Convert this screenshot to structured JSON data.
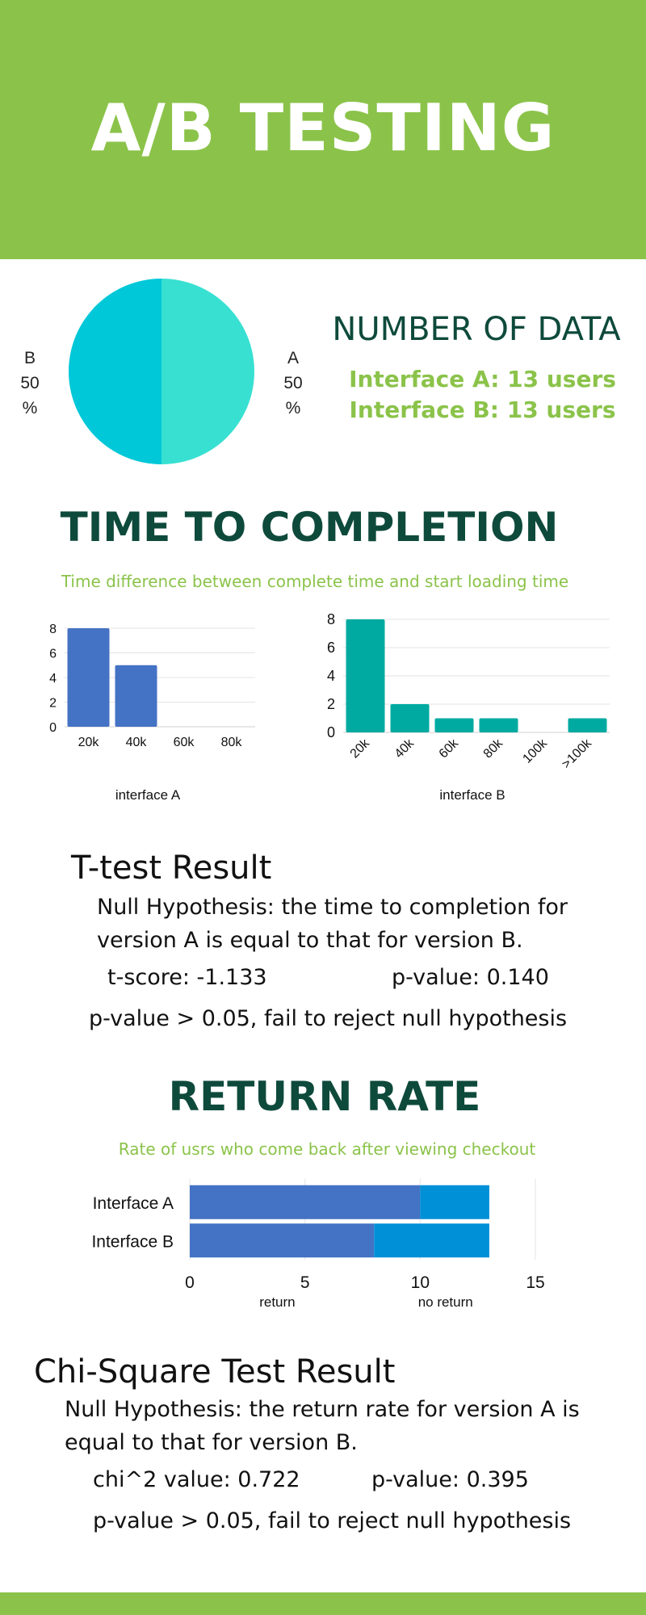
{
  "header": {
    "title": "A/B TESTING",
    "color": "#8bc34a"
  },
  "number_of_data": {
    "heading": "NUMBER OF DATA",
    "interface_a": "Interface A: 13 users",
    "interface_b": "Interface B: 13 users",
    "pie_labels": {
      "b_name": "B",
      "b_value": "50",
      "b_unit": "%",
      "a_name": "A",
      "a_value": "50",
      "a_unit": "%"
    }
  },
  "time_to_completion": {
    "heading": "TIME TO COMPLETION",
    "subtitle": "Time difference between complete time and start loading time"
  },
  "ttest": {
    "title": "T-test Result",
    "hypothesis_line1": "Null Hypothesis: the time to completion for",
    "hypothesis_line2": "version A is equal to that for version B.",
    "score": "t-score: -1.133",
    "pvalue": "p-value: 0.140",
    "conclusion": "p-value > 0.05, fail to reject null hypothesis"
  },
  "return_rate": {
    "heading": "RETURN RATE",
    "subtitle": "Rate of usrs who come back after viewing checkout"
  },
  "chisq": {
    "title": "Chi-Square Test Result",
    "hypothesis_line1": "Null Hypothesis: the return rate for version A is",
    "hypothesis_line2": "equal to that for version B.",
    "score": "chi^2 value: 0.722",
    "pvalue": "p-value: 0.395",
    "conclusion": "p-value > 0.05, fail to reject null hypothesis"
  },
  "chart_data": [
    {
      "type": "pie",
      "categories": [
        "A",
        "B"
      ],
      "values": [
        50,
        50
      ],
      "colors": [
        "#38e0d2",
        "#00c8d8"
      ]
    },
    {
      "type": "bar",
      "xlabel": "interface A",
      "categories": [
        "20k",
        "40k",
        "60k",
        "80k"
      ],
      "values": [
        8,
        5,
        0,
        0
      ],
      "ylim": [
        0,
        8
      ],
      "yticks": [
        0,
        2,
        4,
        6,
        8
      ],
      "grid": true,
      "color": "#4472c4"
    },
    {
      "type": "bar",
      "xlabel": "interface B",
      "categories": [
        "20k",
        "40k",
        "60k",
        "80k",
        "100k",
        ">100k"
      ],
      "values": [
        8,
        2,
        1,
        1,
        0,
        1
      ],
      "ylim": [
        0,
        8
      ],
      "yticks": [
        0,
        2,
        4,
        6,
        8
      ],
      "grid": true,
      "color": "#00aaa0"
    },
    {
      "type": "bar",
      "orientation": "horizontal",
      "stacked": true,
      "categories": [
        "Interface A",
        "Interface B"
      ],
      "series": [
        {
          "name": "return",
          "values": [
            10,
            8
          ],
          "color": "#4472c4"
        },
        {
          "name": "no return",
          "values": [
            3,
            5
          ],
          "color": "#0090d8"
        }
      ],
      "xlim": [
        0,
        15
      ],
      "xticks": [
        0,
        5,
        10,
        15
      ],
      "grid": true
    }
  ]
}
